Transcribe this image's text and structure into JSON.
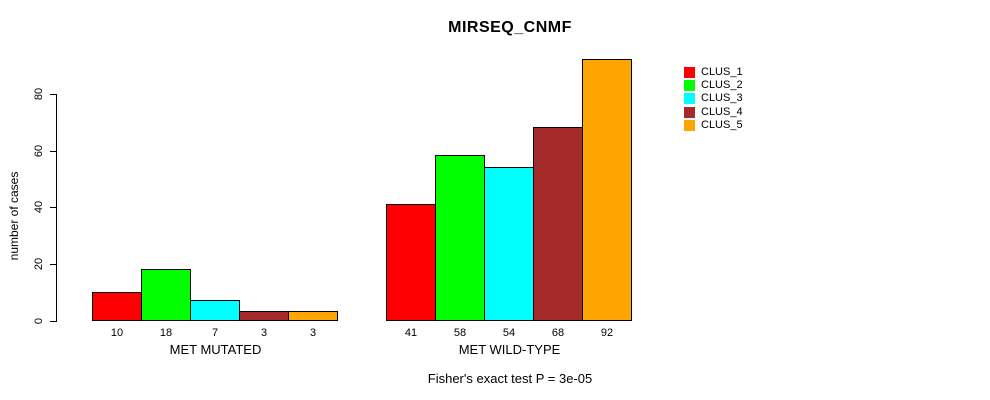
{
  "title": "MIRSEQ_CNMF",
  "annotation": "Fisher's exact test P = 3e-05",
  "y_axis": {
    "label": "number of cases",
    "tick_labels": [
      "0",
      "20",
      "40",
      "60",
      "80"
    ]
  },
  "x_axis": {
    "group_labels": [
      "MET MUTATED",
      "MET WILD-TYPE"
    ]
  },
  "legend": {
    "position": "right",
    "items": [
      {
        "label": "CLUS_1",
        "color": "#FF0000"
      },
      {
        "label": "CLUS_2",
        "color": "#00FF00"
      },
      {
        "label": "CLUS_3",
        "color": "#00FFFF"
      },
      {
        "label": "CLUS_4",
        "color": "#A52A2A"
      },
      {
        "label": "CLUS_5",
        "color": "#FFA500"
      }
    ]
  },
  "chart_data": {
    "type": "bar",
    "title": "MIRSEQ_CNMF",
    "xlabel": "",
    "ylabel": "number of cases",
    "annotation": "Fisher's exact test P = 3e-05",
    "categories": [
      "MET MUTATED",
      "MET WILD-TYPE"
    ],
    "series": [
      {
        "name": "CLUS_1",
        "color": "#FF0000",
        "values": [
          10,
          41
        ]
      },
      {
        "name": "CLUS_2",
        "color": "#00FF00",
        "values": [
          18,
          58
        ]
      },
      {
        "name": "CLUS_3",
        "color": "#00FFFF",
        "values": [
          7,
          54
        ]
      },
      {
        "name": "CLUS_4",
        "color": "#A52A2A",
        "values": [
          3,
          68
        ]
      },
      {
        "name": "CLUS_5",
        "color": "#FFA500",
        "values": [
          3,
          92
        ]
      }
    ],
    "bar_value_labels_shown": true,
    "ylim": [
      0,
      92
    ],
    "yticks": [
      0,
      20,
      40,
      60,
      80
    ],
    "grid": false,
    "legend_position": "right",
    "legend_labels": [
      "CLUS_1",
      "CLUS_2",
      "CLUS_3",
      "CLUS_4",
      "CLUS_5"
    ]
  }
}
